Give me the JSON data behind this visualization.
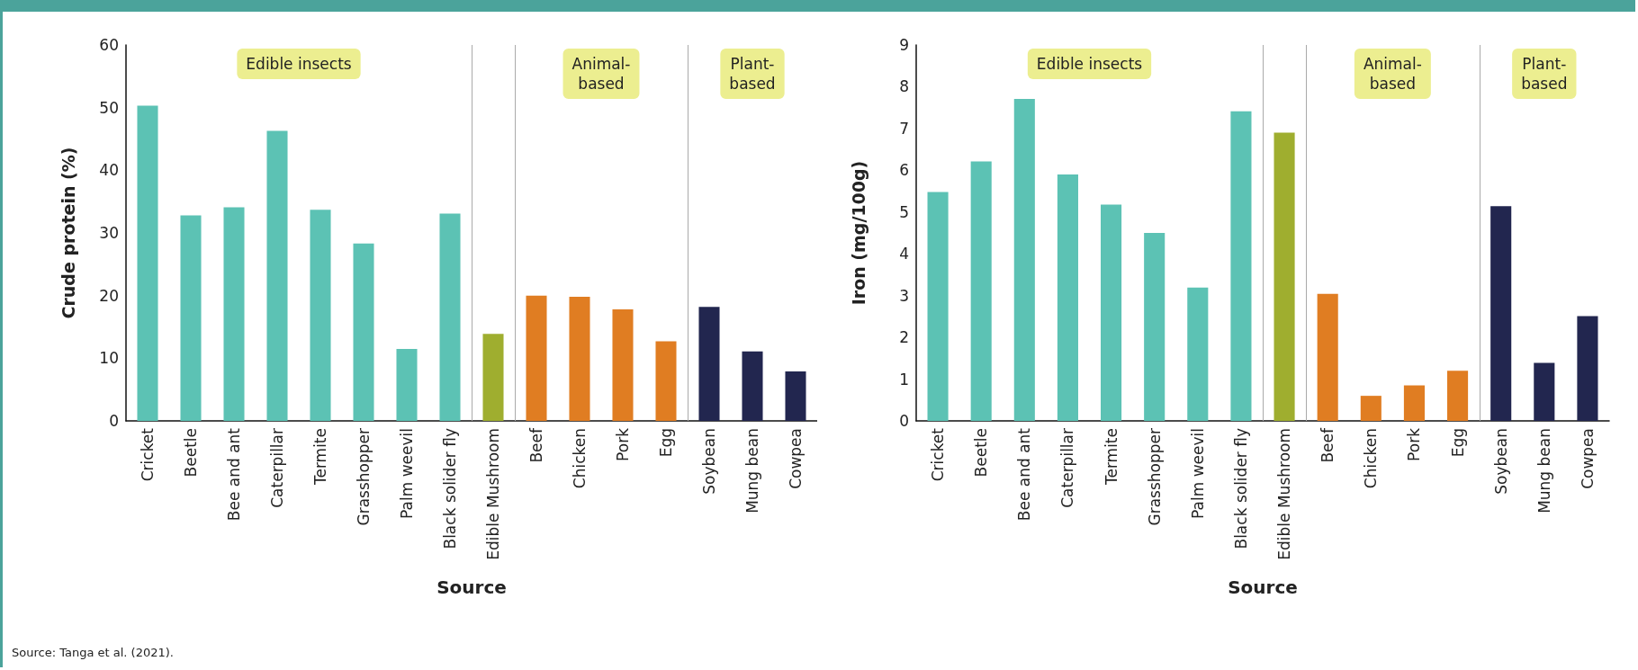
{
  "chart_data": [
    {
      "type": "bar",
      "ylabel": "Crude protein (%)",
      "xlabel": "Source",
      "categories": [
        "Cricket",
        "Beetle",
        "Bee and ant",
        "Caterpillar",
        "Termite",
        "Grasshopper",
        "Palm weevil",
        "Black solider fly",
        "Edible Mushroom",
        "Beef",
        "Chicken",
        "Pork",
        "Egg",
        "Soybean",
        "Mung bean",
        "Cowpea"
      ],
      "values": [
        50.3,
        32.8,
        34.1,
        46.3,
        33.7,
        28.3,
        11.5,
        33.1,
        13.9,
        20.0,
        19.8,
        17.8,
        12.7,
        18.2,
        11.1,
        7.9
      ],
      "colors": [
        "#5cc2b4",
        "#5cc2b4",
        "#5cc2b4",
        "#5cc2b4",
        "#5cc2b4",
        "#5cc2b4",
        "#5cc2b4",
        "#5cc2b4",
        "#9fae2f",
        "#e07d22",
        "#e07d22",
        "#e07d22",
        "#e07d22",
        "#22264f",
        "#22264f",
        "#22264f"
      ],
      "ylim": [
        0,
        60
      ],
      "yticks": [
        0,
        10,
        20,
        30,
        40,
        50,
        60
      ],
      "grid": false,
      "annotations": [
        "Edible insects",
        "Animal-\nbased",
        "Plant-\nbased",
        "Source: Tanga et al. (2021)."
      ]
    },
    {
      "type": "bar",
      "ylabel": "Iron (mg/100g)",
      "xlabel": "Source",
      "categories": [
        "Cricket",
        "Beetle",
        "Bee and ant",
        "Caterpillar",
        "Termite",
        "Grasshopper",
        "Palm weevil",
        "Black solider fly",
        "Edible Mushroom",
        "Beef",
        "Chicken",
        "Pork",
        "Egg",
        "Soybean",
        "Mung bean",
        "Cowpea"
      ],
      "values": [
        5.48,
        6.21,
        7.71,
        5.9,
        5.18,
        4.5,
        3.19,
        7.41,
        6.9,
        3.04,
        0.6,
        0.85,
        1.2,
        5.14,
        1.39,
        2.51
      ],
      "colors": [
        "#5cc2b4",
        "#5cc2b4",
        "#5cc2b4",
        "#5cc2b4",
        "#5cc2b4",
        "#5cc2b4",
        "#5cc2b4",
        "#5cc2b4",
        "#9fae2f",
        "#e07d22",
        "#e07d22",
        "#e07d22",
        "#e07d22",
        "#22264f",
        "#22264f",
        "#22264f"
      ],
      "ylim": [
        0,
        9
      ],
      "yticks": [
        0,
        1,
        2,
        3,
        4,
        5,
        6,
        7,
        8,
        9
      ],
      "grid": false,
      "annotations": [
        "Edible insects",
        "Animal-\nbased",
        "Plant-\nbased"
      ]
    }
  ]
}
